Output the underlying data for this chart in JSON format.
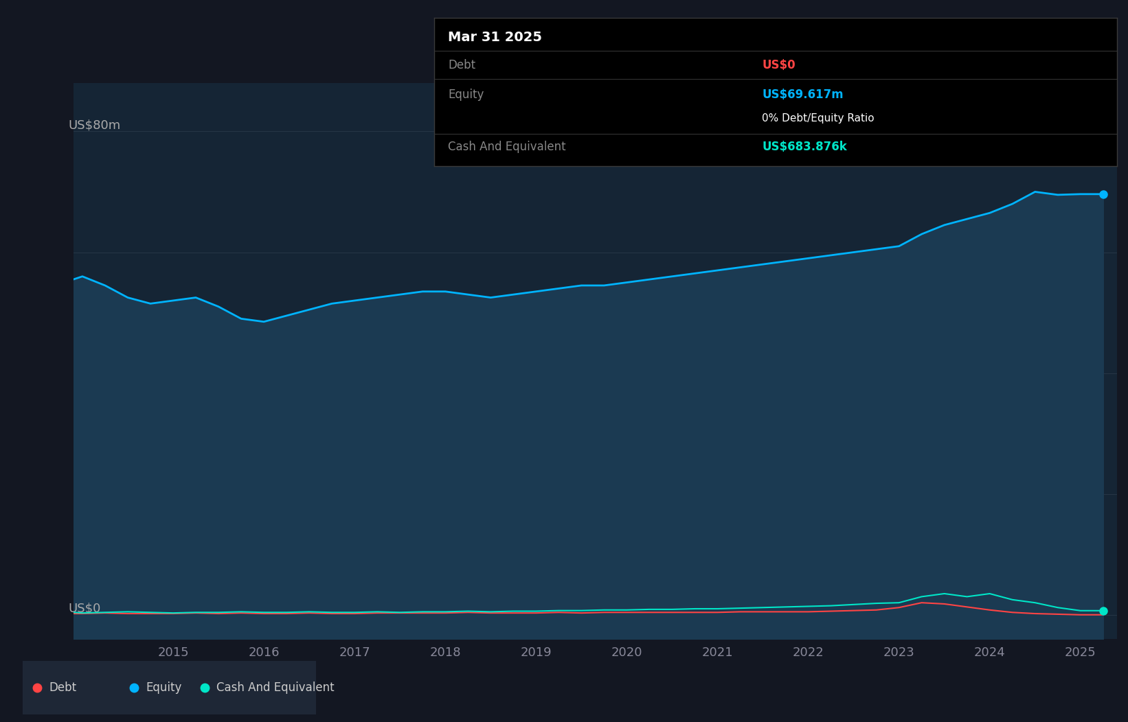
{
  "bg_color": "#131722",
  "plot_bg_color": "#152535",
  "grid_color": "#263545",
  "ylabel_top": "US$80m",
  "ylabel_bottom": "US$0",
  "x_ticks": [
    2015,
    2016,
    2017,
    2018,
    2019,
    2020,
    2021,
    2022,
    2023,
    2024,
    2025
  ],
  "y_min": -4,
  "y_max": 88,
  "equity_color": "#00b4ff",
  "equity_fill_color": "#1b3a52",
  "debt_color": "#ff4444",
  "cash_color": "#00e6c8",
  "tooltip": {
    "date": "Mar 31 2025",
    "debt_label": "Debt",
    "debt_value": "US$0",
    "debt_color": "#ff4444",
    "equity_label": "Equity",
    "equity_value": "US$69.617m",
    "equity_color": "#00b4ff",
    "ratio_text": "0% Debt/Equity Ratio",
    "cash_label": "Cash And Equivalent",
    "cash_value": "US$683.876k",
    "cash_color": "#00e6c8"
  },
  "legend_items": [
    {
      "label": "Debt",
      "color": "#ff4444"
    },
    {
      "label": "Equity",
      "color": "#00b4ff"
    },
    {
      "label": "Cash And Equivalent",
      "color": "#00e6c8"
    }
  ],
  "equity_data": {
    "years": [
      2013.9,
      2014.0,
      2014.25,
      2014.5,
      2014.75,
      2015.0,
      2015.25,
      2015.5,
      2015.75,
      2016.0,
      2016.25,
      2016.5,
      2016.75,
      2017.0,
      2017.25,
      2017.5,
      2017.75,
      2018.0,
      2018.25,
      2018.5,
      2018.75,
      2019.0,
      2019.25,
      2019.5,
      2019.75,
      2020.0,
      2020.25,
      2020.5,
      2020.75,
      2021.0,
      2021.25,
      2021.5,
      2021.75,
      2022.0,
      2022.25,
      2022.5,
      2022.75,
      2023.0,
      2023.25,
      2023.5,
      2023.75,
      2024.0,
      2024.25,
      2024.5,
      2024.75,
      2025.0,
      2025.25
    ],
    "values": [
      55.5,
      56.0,
      54.5,
      52.5,
      51.5,
      52.0,
      52.5,
      51.0,
      49.0,
      48.5,
      49.5,
      50.5,
      51.5,
      52.0,
      52.5,
      53.0,
      53.5,
      53.5,
      53.0,
      52.5,
      53.0,
      53.5,
      54.0,
      54.5,
      54.5,
      55.0,
      55.5,
      56.0,
      56.5,
      57.0,
      57.5,
      58.0,
      58.5,
      59.0,
      59.5,
      60.0,
      60.5,
      61.0,
      63.0,
      64.5,
      65.5,
      66.5,
      68.0,
      70.0,
      69.5,
      69.617,
      69.617
    ]
  },
  "debt_data": {
    "years": [
      2013.9,
      2014.0,
      2014.25,
      2014.5,
      2014.75,
      2015.0,
      2015.25,
      2015.5,
      2015.75,
      2016.0,
      2016.25,
      2016.5,
      2016.75,
      2017.0,
      2017.25,
      2017.5,
      2017.75,
      2018.0,
      2018.25,
      2018.5,
      2018.75,
      2019.0,
      2019.25,
      2019.5,
      2019.75,
      2020.0,
      2020.25,
      2020.5,
      2020.75,
      2021.0,
      2021.25,
      2021.5,
      2021.75,
      2022.0,
      2022.25,
      2022.5,
      2022.75,
      2023.0,
      2023.25,
      2023.5,
      2023.75,
      2024.0,
      2024.25,
      2024.5,
      2024.75,
      2025.0,
      2025.25
    ],
    "values": [
      0.2,
      0.2,
      0.3,
      0.2,
      0.2,
      0.2,
      0.3,
      0.2,
      0.3,
      0.2,
      0.2,
      0.3,
      0.2,
      0.2,
      0.3,
      0.3,
      0.3,
      0.3,
      0.4,
      0.3,
      0.3,
      0.3,
      0.4,
      0.3,
      0.4,
      0.4,
      0.4,
      0.4,
      0.4,
      0.4,
      0.5,
      0.5,
      0.5,
      0.5,
      0.6,
      0.7,
      0.8,
      1.2,
      2.0,
      1.8,
      1.3,
      0.8,
      0.4,
      0.2,
      0.1,
      0.0,
      0.0
    ]
  },
  "cash_data": {
    "years": [
      2013.9,
      2014.0,
      2014.25,
      2014.5,
      2014.75,
      2015.0,
      2015.25,
      2015.5,
      2015.75,
      2016.0,
      2016.25,
      2016.5,
      2016.75,
      2017.0,
      2017.25,
      2017.5,
      2017.75,
      2018.0,
      2018.25,
      2018.5,
      2018.75,
      2019.0,
      2019.25,
      2019.5,
      2019.75,
      2020.0,
      2020.25,
      2020.5,
      2020.75,
      2021.0,
      2021.25,
      2021.5,
      2021.75,
      2022.0,
      2022.25,
      2022.5,
      2022.75,
      2023.0,
      2023.25,
      2023.5,
      2023.75,
      2024.0,
      2024.25,
      2024.5,
      2024.75,
      2025.0,
      2025.25
    ],
    "values": [
      0.4,
      0.3,
      0.4,
      0.5,
      0.4,
      0.3,
      0.4,
      0.4,
      0.5,
      0.4,
      0.4,
      0.5,
      0.4,
      0.4,
      0.5,
      0.4,
      0.5,
      0.5,
      0.6,
      0.5,
      0.6,
      0.6,
      0.7,
      0.7,
      0.8,
      0.8,
      0.9,
      0.9,
      1.0,
      1.0,
      1.1,
      1.2,
      1.3,
      1.4,
      1.5,
      1.7,
      1.9,
      2.0,
      3.0,
      3.5,
      3.0,
      3.5,
      2.5,
      2.0,
      1.2,
      0.684,
      0.684
    ]
  }
}
